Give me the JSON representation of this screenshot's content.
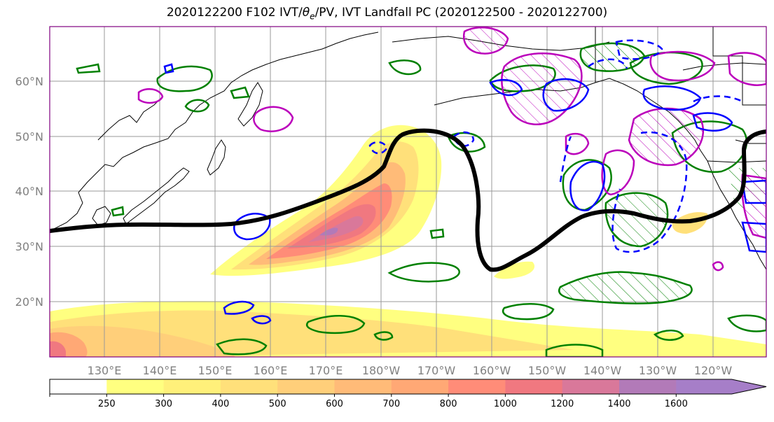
{
  "chart_data": {
    "type": "heatmap",
    "title_prefix": "2020122200 F102 IVT/",
    "title_theta": "θ",
    "title_theta_sub": "e",
    "title_suffix": "/PV, IVT Landfall PC (2020122500 - 2020122700)",
    "latitude_ticks": [
      "20°N",
      "30°N",
      "40°N",
      "50°N",
      "60°N"
    ],
    "longitude_ticks": [
      "130°E",
      "140°E",
      "150°E",
      "160°E",
      "170°E",
      "180°W",
      "170°W",
      "160°W",
      "150°W",
      "140°W",
      "130°W",
      "120°W"
    ],
    "colorbar": {
      "levels": [
        250,
        300,
        400,
        500,
        600,
        700,
        800,
        1000,
        1200,
        1400,
        1600
      ],
      "tick_labels": [
        "250",
        "300",
        "400",
        "500",
        "600",
        "700",
        "800",
        "1000",
        "1200",
        "1400",
        "1600"
      ],
      "colors": [
        "#ffffff",
        "#ffff80",
        "#fff07a",
        "#ffe07a",
        "#ffcf7a",
        "#ffbb78",
        "#ffa875",
        "#ff8c78",
        "#f07880",
        "#d9789a",
        "#b27ab8",
        "#a67ec8"
      ],
      "extend": "max"
    },
    "ivt_max_region": "central North Pacific near 35°N 175°E",
    "overlay_colors": {
      "pc_contour": "#000000",
      "theta_e": "#008000",
      "pv_positive": "#0000ff",
      "pv_hatched": "#bb00bb"
    },
    "grid": true
  }
}
